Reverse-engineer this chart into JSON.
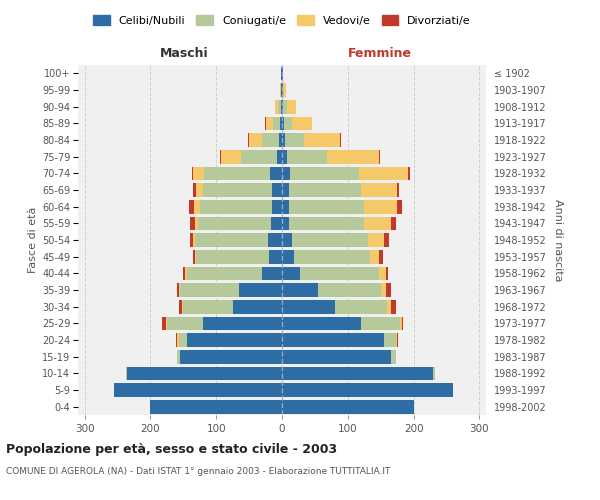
{
  "age_groups": [
    "0-4",
    "5-9",
    "10-14",
    "15-19",
    "20-24",
    "25-29",
    "30-34",
    "35-39",
    "40-44",
    "45-49",
    "50-54",
    "55-59",
    "60-64",
    "65-69",
    "70-74",
    "75-79",
    "80-84",
    "85-89",
    "90-94",
    "95-99",
    "100+"
  ],
  "birth_years": [
    "1998-2002",
    "1993-1997",
    "1988-1992",
    "1983-1987",
    "1978-1982",
    "1973-1977",
    "1968-1972",
    "1963-1967",
    "1958-1962",
    "1953-1957",
    "1948-1952",
    "1943-1947",
    "1938-1942",
    "1933-1937",
    "1928-1932",
    "1923-1927",
    "1918-1922",
    "1913-1917",
    "1908-1912",
    "1903-1907",
    "≤ 1902"
  ],
  "colors": {
    "celibi": "#2E6DA4",
    "coniugati": "#B5C99A",
    "vedovi": "#F5C96A",
    "divorziati": "#C0392B"
  },
  "maschi": {
    "celibi": [
      200,
      255,
      235,
      155,
      145,
      120,
      75,
      65,
      30,
      20,
      22,
      17,
      15,
      15,
      18,
      8,
      5,
      3,
      2,
      1,
      1
    ],
    "coniugati": [
      0,
      0,
      2,
      5,
      12,
      55,
      75,
      90,
      115,
      110,
      110,
      110,
      110,
      105,
      100,
      55,
      25,
      10,
      4,
      1,
      0
    ],
    "vedovi": [
      0,
      0,
      0,
      0,
      2,
      2,
      2,
      2,
      2,
      2,
      3,
      5,
      8,
      10,
      18,
      30,
      20,
      12,
      5,
      1,
      0
    ],
    "divorziati": [
      0,
      0,
      0,
      0,
      2,
      5,
      5,
      3,
      3,
      3,
      5,
      8,
      8,
      5,
      1,
      1,
      1,
      1,
      0,
      0,
      0
    ]
  },
  "femmine": {
    "celibi": [
      200,
      260,
      230,
      165,
      155,
      120,
      80,
      55,
      28,
      18,
      15,
      10,
      10,
      10,
      12,
      8,
      5,
      3,
      2,
      1,
      1
    ],
    "coniugati": [
      0,
      0,
      2,
      8,
      18,
      60,
      80,
      95,
      120,
      115,
      115,
      115,
      115,
      110,
      105,
      60,
      28,
      12,
      5,
      1,
      0
    ],
    "vedovi": [
      0,
      0,
      0,
      0,
      2,
      2,
      5,
      8,
      10,
      15,
      25,
      40,
      50,
      55,
      75,
      80,
      55,
      30,
      15,
      4,
      1
    ],
    "divorziati": [
      0,
      0,
      0,
      0,
      2,
      2,
      8,
      8,
      3,
      5,
      8,
      8,
      8,
      3,
      2,
      1,
      1,
      1,
      0,
      0,
      0
    ]
  },
  "title": "Popolazione per età, sesso e stato civile - 2003",
  "subtitle": "COMUNE DI AGEROLA (NA) - Dati ISTAT 1° gennaio 2003 - Elaborazione TUTTITALIA.IT",
  "xlabel_left": "Maschi",
  "xlabel_right": "Femmine",
  "ylabel_left": "Fasce di età",
  "ylabel_right": "Anni di nascita",
  "xlim": 310,
  "xticks": [
    -300,
    -200,
    -100,
    0,
    100,
    200,
    300
  ],
  "legend_labels": [
    "Celibi/Nubili",
    "Coniugati/e",
    "Vedovi/e",
    "Divorziati/e"
  ],
  "background_color": "#ffffff",
  "plot_bg_color": "#f0f0f0",
  "grid_color": "#cccccc"
}
